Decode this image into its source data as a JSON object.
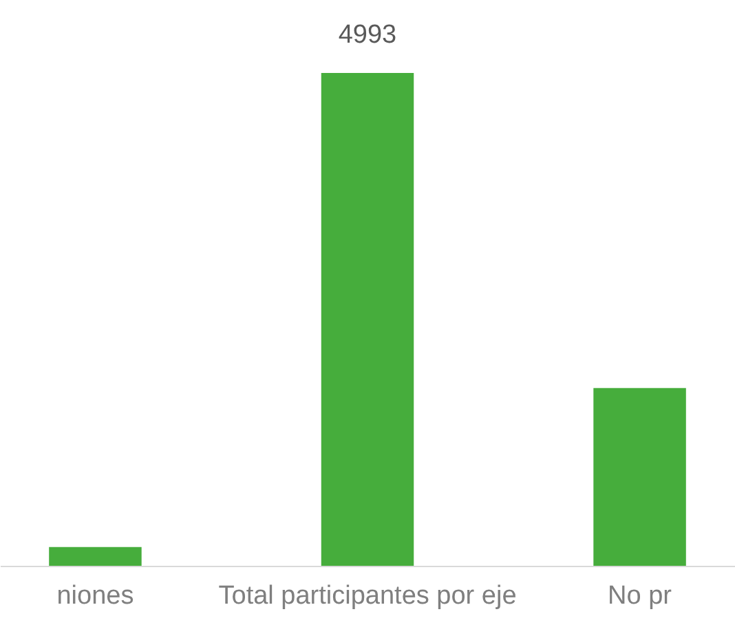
{
  "chart_data": {
    "type": "bar",
    "categories": [
      "niones",
      "Total participantes por eje",
      "No pr"
    ],
    "values": [
      190,
      4993,
      1800
    ],
    "value_labels": [
      null,
      "4993",
      null
    ],
    "color": "#46ad3c"
  }
}
